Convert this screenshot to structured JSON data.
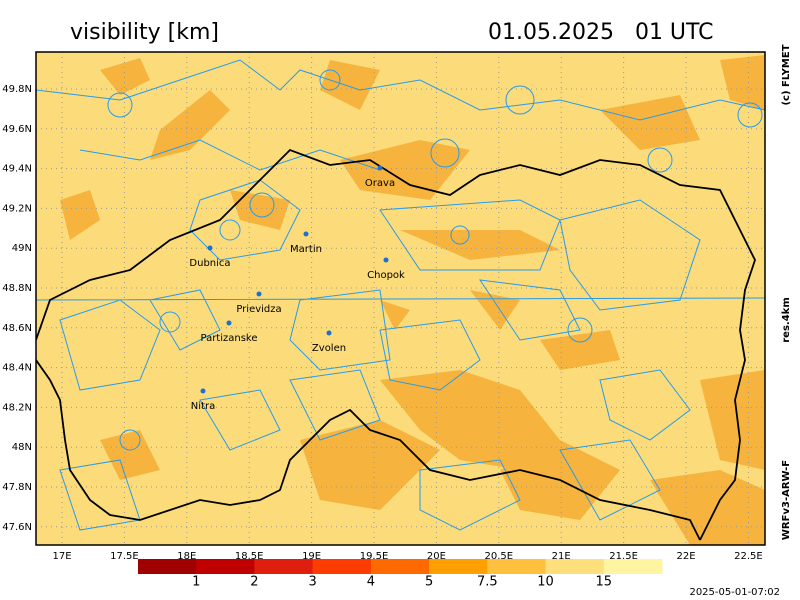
{
  "header": {
    "title": "visibility [km]",
    "time": "01.05.2025   01 UTC"
  },
  "side": {
    "copyright": "(c) FLYMET",
    "resolution": "res.4km",
    "model": "WRFv3-ARW-F"
  },
  "map": {
    "lat_labels": [
      "49.8N",
      "49.6N",
      "49.4N",
      "49.2N",
      "49N",
      "48.8N",
      "48.6N",
      "48.4N",
      "48.2N",
      "48N",
      "47.8N",
      "47.6N"
    ],
    "lon_labels": [
      "17E",
      "17.5E",
      "18E",
      "18.5E",
      "19E",
      "19.5E",
      "20E",
      "20.5E",
      "21E",
      "21.5E",
      "22E",
      "22.5E"
    ],
    "cities": [
      "Orava",
      "Martin",
      "Dubnica",
      "Chopok",
      "Prievidza",
      "Partizanske",
      "Zvolen",
      "Nitra"
    ]
  },
  "legend": {
    "labels": [
      "1",
      "2",
      "3",
      "4",
      "5",
      "7.5",
      "10",
      "15"
    ],
    "colors": [
      "#a00000",
      "#c00000",
      "#e01e10",
      "#ff3c00",
      "#ff6a00",
      "#ffa000",
      "#ffc040",
      "#fde07c",
      "#fff4a0"
    ]
  },
  "footer": {
    "timestamp": "2025-05-01-07:02"
  }
}
